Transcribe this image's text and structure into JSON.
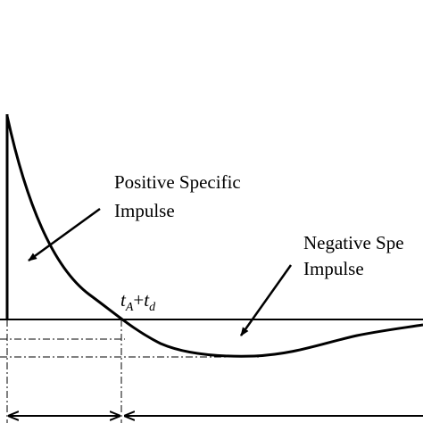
{
  "positive_label": {
    "line1": "Positive Specific",
    "line2": "Impulse"
  },
  "negative_label": {
    "line1": "Negative Spe",
    "line2": "Impulse"
  },
  "time_label": {
    "t1": "t",
    "sub1": "A",
    "plus": "+",
    "t2": "t",
    "sub2": "d"
  }
}
